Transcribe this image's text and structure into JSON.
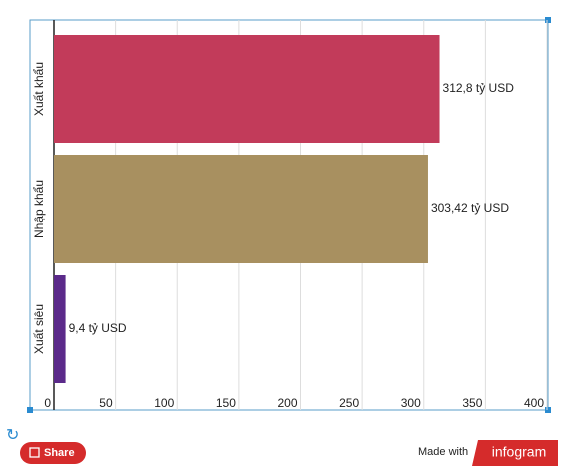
{
  "chart_data": {
    "type": "bar",
    "orientation": "horizontal",
    "categories": [
      "Xuất khẩu",
      "Nhập khẩu",
      "Xuất siêu"
    ],
    "values": [
      312.8,
      303.42,
      9.4
    ],
    "value_labels": [
      "312,8 tỷ USD",
      "303,42 tỷ USD",
      "9,4 tỷ USD"
    ],
    "colors": [
      "#c23b5a",
      "#a89060",
      "#5b2a8a"
    ],
    "xlim": [
      0,
      400
    ],
    "xticks": [
      0,
      50,
      100,
      150,
      200,
      250,
      300,
      350,
      400
    ],
    "grid": true
  },
  "footer": {
    "share": "Share",
    "made_with": "Made with",
    "brand": "infogram"
  }
}
